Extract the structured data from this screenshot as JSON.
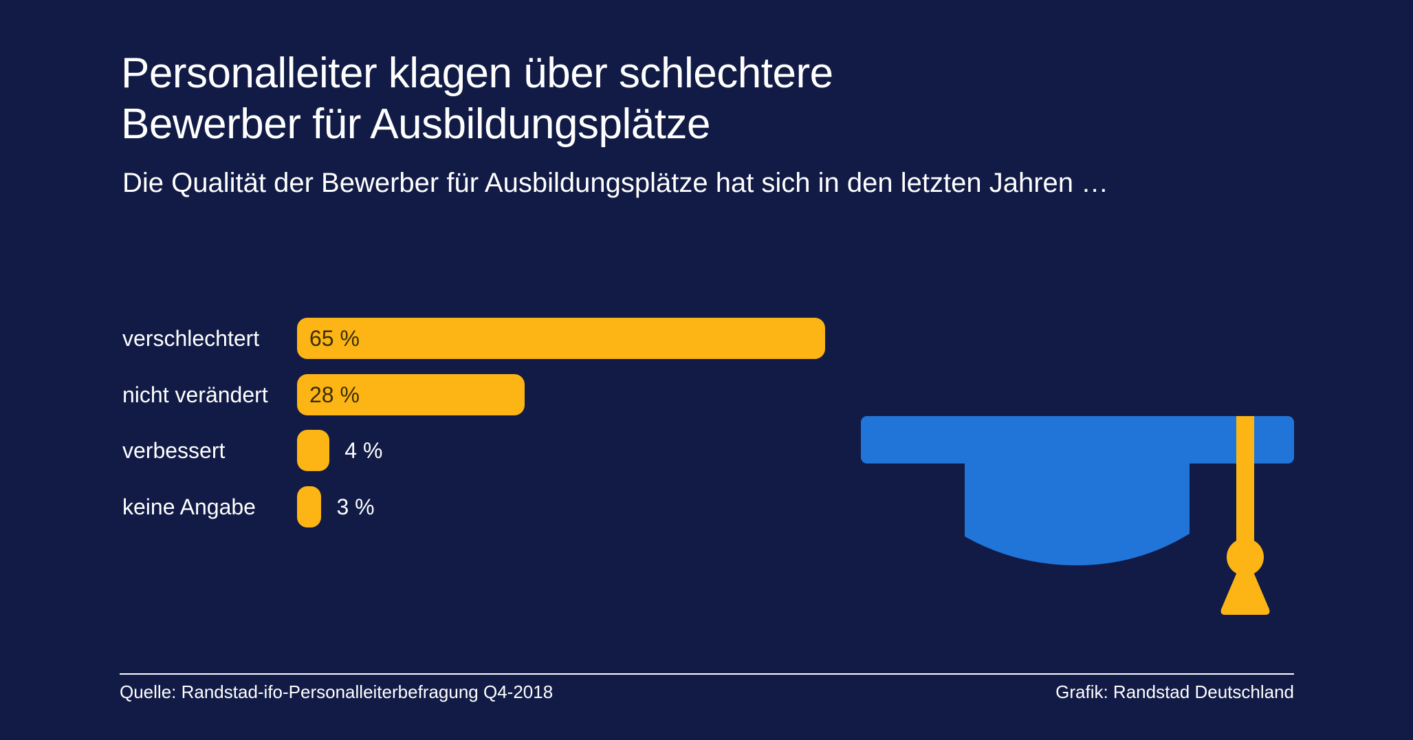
{
  "header": {
    "title_line1": "Personalleiter klagen über schlechtere",
    "title_line2": "Bewerber für Ausbildungsplätze",
    "subtitle": "Die Qualität der Bewerber für Ausbildungsplätze hat sich in den letzten Jahren …"
  },
  "chart_data": {
    "type": "bar",
    "orientation": "horizontal",
    "title": "Personalleiter klagen über schlechtere Bewerber für Ausbildungsplätze",
    "subtitle": "Die Qualität der Bewerber für Ausbildungsplätze hat sich in den letzten Jahren …",
    "categories": [
      "verschlechtert",
      "nicht verändert",
      "verbessert",
      "keine Angabe"
    ],
    "values": [
      65,
      28,
      4,
      3
    ],
    "value_labels": [
      "65 %",
      "28 %",
      "4 %",
      "3 %"
    ],
    "unit": "%",
    "xlim": [
      0,
      65
    ],
    "grid": false,
    "bar_color": "#fdb515"
  },
  "footer": {
    "source": "Quelle: Randstad-ifo-Personalleiterbefragung Q4-2018",
    "credit": "Grafik: Randstad Deutschland"
  },
  "illustration": {
    "icon": "graduation-cap-icon",
    "cap_color": "#2175d9",
    "tassel_color": "#fdb515"
  },
  "colors": {
    "background": "#111b45",
    "text": "#ffffff",
    "bar": "#fdb515"
  }
}
